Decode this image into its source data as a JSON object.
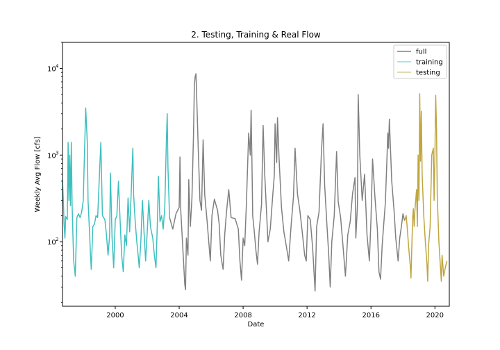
{
  "chart_data": {
    "type": "line",
    "title": "2. Testing, Training & Real Flow",
    "xlabel": "Date",
    "ylabel": "Weekly Avg Flow [cfs]",
    "yscale": "log",
    "xlim": [
      1996.7,
      2020.9
    ],
    "ylim": [
      18,
      20000
    ],
    "x_ticks": [
      2000,
      2004,
      2008,
      2012,
      2016,
      2020
    ],
    "x_tick_labels": [
      "2000",
      "2004",
      "2008",
      "2012",
      "2016",
      "2020"
    ],
    "y_ticks": [
      100,
      1000,
      10000
    ],
    "y_tick_labels": [
      "10",
      "10",
      "10"
    ],
    "y_tick_exponents": [
      "2",
      "3",
      "4"
    ],
    "grid": false,
    "legend_position": "top-right",
    "series": [
      {
        "name": "full",
        "color": "#808080",
        "points": [
          [
            2003.4,
            190
          ],
          [
            2003.6,
            140
          ],
          [
            2003.8,
            210
          ],
          [
            2004.0,
            250
          ],
          [
            2004.05,
            950
          ],
          [
            2004.1,
            230
          ],
          [
            2004.25,
            70
          ],
          [
            2004.35,
            32
          ],
          [
            2004.4,
            28
          ],
          [
            2004.45,
            110
          ],
          [
            2004.55,
            70
          ],
          [
            2004.6,
            520
          ],
          [
            2004.7,
            150
          ],
          [
            2004.8,
            320
          ],
          [
            2004.9,
            1800
          ],
          [
            2004.95,
            6500
          ],
          [
            2005.0,
            8000
          ],
          [
            2005.05,
            8700
          ],
          [
            2005.1,
            4500
          ],
          [
            2005.2,
            1100
          ],
          [
            2005.3,
            300
          ],
          [
            2005.4,
            230
          ],
          [
            2005.5,
            1500
          ],
          [
            2005.6,
            350
          ],
          [
            2005.75,
            170
          ],
          [
            2005.85,
            100
          ],
          [
            2005.95,
            60
          ],
          [
            2006.05,
            200
          ],
          [
            2006.2,
            310
          ],
          [
            2006.4,
            230
          ],
          [
            2006.5,
            160
          ],
          [
            2006.6,
            70
          ],
          [
            2006.75,
            48
          ],
          [
            2006.85,
            120
          ],
          [
            2006.95,
            210
          ],
          [
            2007.1,
            400
          ],
          [
            2007.25,
            190
          ],
          [
            2007.5,
            185
          ],
          [
            2007.7,
            140
          ],
          [
            2007.8,
            60
          ],
          [
            2007.9,
            36
          ],
          [
            2008.0,
            110
          ],
          [
            2008.1,
            90
          ],
          [
            2008.2,
            260
          ],
          [
            2008.35,
            1800
          ],
          [
            2008.45,
            1000
          ],
          [
            2008.5,
            3300
          ],
          [
            2008.55,
            950
          ],
          [
            2008.6,
            200
          ],
          [
            2008.7,
            130
          ],
          [
            2008.8,
            80
          ],
          [
            2008.9,
            55
          ],
          [
            2009.0,
            130
          ],
          [
            2009.15,
            270
          ],
          [
            2009.25,
            2200
          ],
          [
            2009.35,
            600
          ],
          [
            2009.45,
            250
          ],
          [
            2009.55,
            100
          ],
          [
            2009.7,
            140
          ],
          [
            2009.85,
            340
          ],
          [
            2009.95,
            580
          ],
          [
            2010.0,
            2300
          ],
          [
            2010.1,
            820
          ],
          [
            2010.15,
            2700
          ],
          [
            2010.25,
            900
          ],
          [
            2010.4,
            250
          ],
          [
            2010.55,
            130
          ],
          [
            2010.7,
            90
          ],
          [
            2010.85,
            60
          ],
          [
            2011.0,
            150
          ],
          [
            2011.15,
            330
          ],
          [
            2011.25,
            1200
          ],
          [
            2011.4,
            360
          ],
          [
            2011.55,
            230
          ],
          [
            2011.7,
            130
          ],
          [
            2011.85,
            70
          ],
          [
            2011.95,
            60
          ],
          [
            2012.05,
            200
          ],
          [
            2012.2,
            180
          ],
          [
            2012.35,
            85
          ],
          [
            2012.45,
            40
          ],
          [
            2012.5,
            27
          ],
          [
            2012.6,
            150
          ],
          [
            2012.75,
            220
          ],
          [
            2012.9,
            1100
          ],
          [
            2013.0,
            2300
          ],
          [
            2013.1,
            450
          ],
          [
            2013.25,
            150
          ],
          [
            2013.35,
            75
          ],
          [
            2013.45,
            30
          ],
          [
            2013.55,
            100
          ],
          [
            2013.7,
            200
          ],
          [
            2013.85,
            1100
          ],
          [
            2013.95,
            290
          ],
          [
            2014.1,
            190
          ],
          [
            2014.25,
            90
          ],
          [
            2014.4,
            40
          ],
          [
            2014.55,
            120
          ],
          [
            2014.7,
            170
          ],
          [
            2014.85,
            360
          ],
          [
            2015.0,
            550
          ],
          [
            2015.05,
            110
          ],
          [
            2015.15,
            260
          ],
          [
            2015.2,
            5000
          ],
          [
            2015.3,
            1000
          ],
          [
            2015.45,
            300
          ],
          [
            2015.6,
            600
          ],
          [
            2015.75,
            120
          ],
          [
            2015.9,
            60
          ],
          [
            2016.0,
            180
          ],
          [
            2016.1,
            900
          ],
          [
            2016.25,
            320
          ],
          [
            2016.4,
            140
          ],
          [
            2016.5,
            45
          ],
          [
            2016.6,
            37
          ],
          [
            2016.7,
            90
          ],
          [
            2016.8,
            160
          ],
          [
            2016.9,
            280
          ],
          [
            2017.0,
            900
          ],
          [
            2017.05,
            1800
          ],
          [
            2017.1,
            1200
          ],
          [
            2017.15,
            2600
          ],
          [
            2017.2,
            1500
          ],
          [
            2017.3,
            500
          ],
          [
            2017.45,
            220
          ],
          [
            2017.55,
            110
          ],
          [
            2017.7,
            60
          ],
          [
            2017.8,
            110
          ],
          [
            2017.9,
            150
          ],
          [
            2018.0,
            210
          ],
          [
            2018.1,
            175
          ]
        ]
      },
      {
        "name": "training",
        "color": "#40bfbf",
        "points": [
          [
            1996.7,
            520
          ],
          [
            1996.75,
            300
          ],
          [
            1996.8,
            160
          ],
          [
            1996.85,
            110
          ],
          [
            1996.9,
            195
          ],
          [
            1997.0,
            180
          ],
          [
            1997.05,
            1400
          ],
          [
            1997.1,
            300
          ],
          [
            1997.15,
            1000
          ],
          [
            1997.2,
            260
          ],
          [
            1997.25,
            1400
          ],
          [
            1997.3,
            280
          ],
          [
            1997.35,
            120
          ],
          [
            1997.4,
            60
          ],
          [
            1997.5,
            40
          ],
          [
            1997.6,
            190
          ],
          [
            1997.7,
            210
          ],
          [
            1997.8,
            190
          ],
          [
            1997.9,
            220
          ],
          [
            1998.0,
            300
          ],
          [
            1998.05,
            720
          ],
          [
            1998.1,
            1500
          ],
          [
            1998.15,
            3500
          ],
          [
            1998.2,
            2300
          ],
          [
            1998.25,
            1400
          ],
          [
            1998.3,
            300
          ],
          [
            1998.4,
            120
          ],
          [
            1998.45,
            70
          ],
          [
            1998.5,
            48
          ],
          [
            1998.6,
            150
          ],
          [
            1998.7,
            160
          ],
          [
            1998.8,
            200
          ],
          [
            1998.9,
            190
          ],
          [
            1999.0,
            520
          ],
          [
            1999.1,
            1400
          ],
          [
            1999.2,
            200
          ],
          [
            1999.35,
            180
          ],
          [
            1999.45,
            120
          ],
          [
            1999.55,
            70
          ],
          [
            1999.65,
            120
          ],
          [
            1999.7,
            620
          ],
          [
            1999.8,
            110
          ],
          [
            1999.9,
            50
          ],
          [
            2000.0,
            180
          ],
          [
            2000.1,
            200
          ],
          [
            2000.2,
            500
          ],
          [
            2000.3,
            180
          ],
          [
            2000.4,
            70
          ],
          [
            2000.5,
            45
          ],
          [
            2000.6,
            120
          ],
          [
            2000.7,
            90
          ],
          [
            2000.8,
            320
          ],
          [
            2000.9,
            130
          ],
          [
            2001.0,
            380
          ],
          [
            2001.1,
            1200
          ],
          [
            2001.15,
            350
          ],
          [
            2001.25,
            170
          ],
          [
            2001.35,
            100
          ],
          [
            2001.45,
            65
          ],
          [
            2001.5,
            50
          ],
          [
            2001.6,
            100
          ],
          [
            2001.7,
            300
          ],
          [
            2001.8,
            130
          ],
          [
            2001.9,
            60
          ],
          [
            2002.0,
            130
          ],
          [
            2002.1,
            300
          ],
          [
            2002.2,
            150
          ],
          [
            2002.35,
            110
          ],
          [
            2002.45,
            70
          ],
          [
            2002.55,
            50
          ],
          [
            2002.65,
            200
          ],
          [
            2002.7,
            570
          ],
          [
            2002.8,
            170
          ],
          [
            2002.9,
            200
          ],
          [
            2003.0,
            140
          ],
          [
            2003.1,
            250
          ],
          [
            2003.2,
            1500
          ],
          [
            2003.25,
            3000
          ],
          [
            2003.3,
            700
          ],
          [
            2003.4,
            190
          ]
        ]
      },
      {
        "name": "testing",
        "color": "#bfa640",
        "points": [
          [
            2018.1,
            175
          ],
          [
            2018.2,
            200
          ],
          [
            2018.25,
            160
          ],
          [
            2018.35,
            90
          ],
          [
            2018.45,
            55
          ],
          [
            2018.5,
            38
          ],
          [
            2018.6,
            180
          ],
          [
            2018.65,
            240
          ],
          [
            2018.7,
            150
          ],
          [
            2018.75,
            230
          ],
          [
            2018.85,
            400
          ],
          [
            2018.9,
            150
          ],
          [
            2018.95,
            1000
          ],
          [
            2019.0,
            300
          ],
          [
            2019.05,
            5100
          ],
          [
            2019.1,
            850
          ],
          [
            2019.15,
            3200
          ],
          [
            2019.2,
            600
          ],
          [
            2019.3,
            200
          ],
          [
            2019.4,
            100
          ],
          [
            2019.5,
            55
          ],
          [
            2019.55,
            35
          ],
          [
            2019.6,
            90
          ],
          [
            2019.7,
            150
          ],
          [
            2019.8,
            1000
          ],
          [
            2019.9,
            1200
          ],
          [
            2019.95,
            300
          ],
          [
            2020.0,
            1000
          ],
          [
            2020.05,
            4900
          ],
          [
            2020.1,
            2000
          ],
          [
            2020.15,
            330
          ],
          [
            2020.25,
            100
          ],
          [
            2020.35,
            50
          ],
          [
            2020.4,
            35
          ],
          [
            2020.45,
            70
          ],
          [
            2020.55,
            40
          ],
          [
            2020.65,
            50
          ],
          [
            2020.75,
            60
          ]
        ]
      }
    ]
  }
}
